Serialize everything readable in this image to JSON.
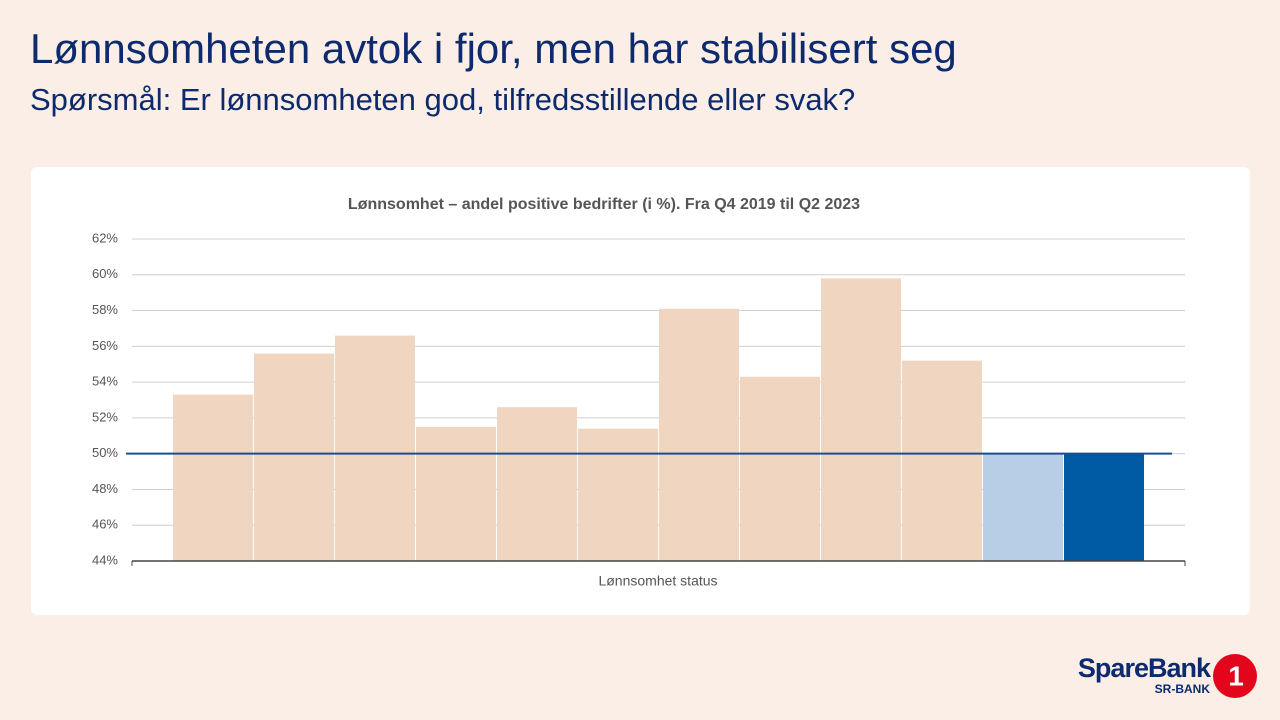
{
  "header": {
    "title": "Lønnsomheten avtok i fjor, men har stabilisert seg",
    "subtitle": "Spørsmål: Er lønnsomheten god, tilfredsstillende eller svak?"
  },
  "logo": {
    "name": "SpareBank",
    "sub": "SR-BANK",
    "mark": "1"
  },
  "chart_data": {
    "type": "bar",
    "title": "Lønnsomhet – andel positive bedrifter (i %). Fra Q4 2019 til Q2 2023",
    "x_label": "Lønnsomhet status",
    "categories": [
      null,
      null,
      null,
      null,
      null,
      null,
      null,
      null,
      null,
      null,
      null,
      null
    ],
    "values": [
      53.3,
      55.6,
      56.6,
      51.5,
      52.6,
      51.4,
      58.1,
      54.3,
      59.8,
      55.2,
      50.0,
      50.0
    ],
    "colors": [
      "#f0d5c0",
      "#f0d5c0",
      "#f0d5c0",
      "#f0d5c0",
      "#f0d5c0",
      "#f0d5c0",
      "#f0d5c0",
      "#f0d5c0",
      "#f0d5c0",
      "#f0d5c0",
      "#b8cde6",
      "#005aa4"
    ],
    "ylim": [
      44,
      62
    ],
    "yticks": [
      {
        "value": 44,
        "label": "44%"
      },
      {
        "value": 46,
        "label": "46%"
      },
      {
        "value": 48,
        "label": "48%"
      },
      {
        "value": 50,
        "label": "50%"
      },
      {
        "value": 52,
        "label": "52%"
      },
      {
        "value": 54,
        "label": "54%"
      },
      {
        "value": 56,
        "label": "56%"
      },
      {
        "value": 58,
        "label": "58%"
      },
      {
        "value": 60,
        "label": "60%"
      },
      {
        "value": 62,
        "label": "62%"
      }
    ],
    "grid": true,
    "reference_line": 50,
    "reference_color": "#1a4f8f"
  }
}
